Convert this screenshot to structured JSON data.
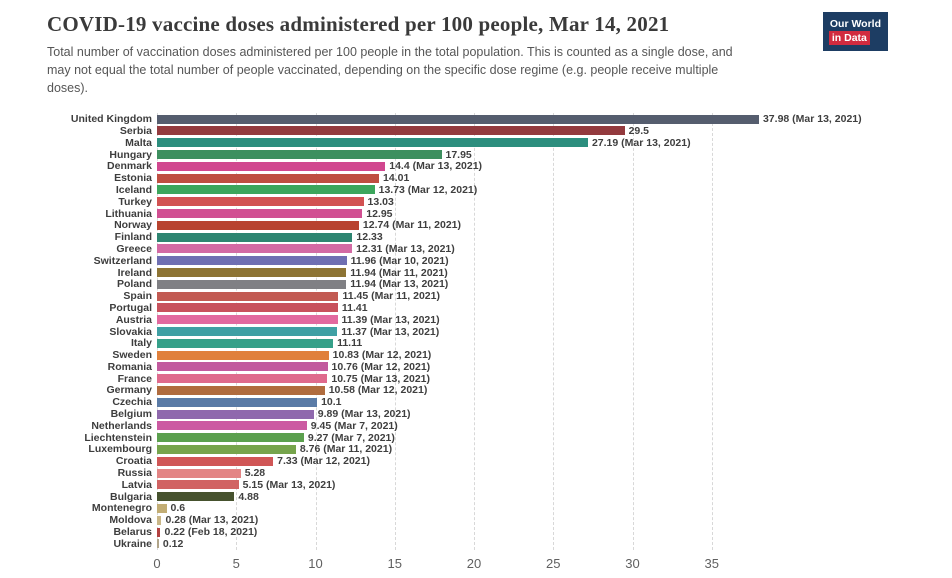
{
  "header": {
    "title": "COVID-19 vaccine doses administered per 100 people, Mar 14, 2021",
    "subtitle": "Total number of vaccination doses administered per 100 people in the total population. This is counted as a single dose, and may not equal the total number of people vaccinated, depending on the specific dose regime (e.g. people receive multiple doses).",
    "logo": {
      "line1": "Our World",
      "line2": "in Data"
    }
  },
  "colors": {
    "background": "#ffffff",
    "logo_bg": "#1d3d63",
    "logo_accent": "#d12b3f",
    "grid": "#d8d8d8",
    "axis_text": "#606060",
    "label_text": "#3d3d3d"
  },
  "chart_data": {
    "type": "bar",
    "orientation": "horizontal",
    "title": "COVID-19 vaccine doses administered per 100 people, Mar 14, 2021",
    "xlabel": "",
    "ylabel": "",
    "xlim": [
      0,
      38
    ],
    "xticks": [
      0,
      5,
      10,
      15,
      20,
      25,
      30,
      35
    ],
    "grid": "vertical-dashed",
    "unit": "doses per 100 people",
    "series": [
      {
        "label": "United Kingdom",
        "value": 37.98,
        "display": "37.98 (Mar 13, 2021)",
        "color": "#555d6e"
      },
      {
        "label": "Serbia",
        "value": 29.5,
        "display": "29.5",
        "color": "#933a3e"
      },
      {
        "label": "Malta",
        "value": 27.19,
        "display": "27.19 (Mar 13, 2021)",
        "color": "#2c8e7e"
      },
      {
        "label": "Hungary",
        "value": 17.95,
        "display": "17.95",
        "color": "#3d8f5f"
      },
      {
        "label": "Denmark",
        "value": 14.4,
        "display": "14.4 (Mar 13, 2021)",
        "color": "#d1478f"
      },
      {
        "label": "Estonia",
        "value": 14.01,
        "display": "14.01",
        "color": "#bf4e41"
      },
      {
        "label": "Iceland",
        "value": 13.73,
        "display": "13.73 (Mar 12, 2021)",
        "color": "#3ca65c"
      },
      {
        "label": "Turkey",
        "value": 13.03,
        "display": "13.03",
        "color": "#d25252"
      },
      {
        "label": "Lithuania",
        "value": 12.95,
        "display": "12.95",
        "color": "#d14f92"
      },
      {
        "label": "Norway",
        "value": 12.74,
        "display": "12.74 (Mar 11, 2021)",
        "color": "#b8432f"
      },
      {
        "label": "Finland",
        "value": 12.33,
        "display": "12.33",
        "color": "#2d8571"
      },
      {
        "label": "Greece",
        "value": 12.31,
        "display": "12.31 (Mar 13, 2021)",
        "color": "#d36aa4"
      },
      {
        "label": "Switzerland",
        "value": 11.96,
        "display": "11.96 (Mar 10, 2021)",
        "color": "#6f6fb2"
      },
      {
        "label": "Ireland",
        "value": 11.94,
        "display": "11.94 (Mar 11, 2021)",
        "color": "#8d7434"
      },
      {
        "label": "Poland",
        "value": 11.94,
        "display": "11.94 (Mar 13, 2021)",
        "color": "#808084"
      },
      {
        "label": "Spain",
        "value": 11.45,
        "display": "11.45 (Mar 11, 2021)",
        "color": "#c25a52"
      },
      {
        "label": "Portugal",
        "value": 11.41,
        "display": "11.41",
        "color": "#c8515c"
      },
      {
        "label": "Austria",
        "value": 11.39,
        "display": "11.39 (Mar 13, 2021)",
        "color": "#e2699f"
      },
      {
        "label": "Slovakia",
        "value": 11.37,
        "display": "11.37 (Mar 13, 2021)",
        "color": "#3fa0a4"
      },
      {
        "label": "Italy",
        "value": 11.11,
        "display": "11.11",
        "color": "#35a089"
      },
      {
        "label": "Sweden",
        "value": 10.83,
        "display": "10.83 (Mar 12, 2021)",
        "color": "#e0803c"
      },
      {
        "label": "Romania",
        "value": 10.76,
        "display": "10.76 (Mar 12, 2021)",
        "color": "#c25a9e"
      },
      {
        "label": "France",
        "value": 10.75,
        "display": "10.75 (Mar 13, 2021)",
        "color": "#df6a8d"
      },
      {
        "label": "Germany",
        "value": 10.58,
        "display": "10.58 (Mar 12, 2021)",
        "color": "#b06c3e"
      },
      {
        "label": "Czechia",
        "value": 10.1,
        "display": "10.1",
        "color": "#5a7ba6"
      },
      {
        "label": "Belgium",
        "value": 9.89,
        "display": "9.89 (Mar 13, 2021)",
        "color": "#8f68ad"
      },
      {
        "label": "Netherlands",
        "value": 9.45,
        "display": "9.45 (Mar 7, 2021)",
        "color": "#cc5aa2"
      },
      {
        "label": "Liechtenstein",
        "value": 9.27,
        "display": "9.27 (Mar 7, 2021)",
        "color": "#5ba04e"
      },
      {
        "label": "Luxembourg",
        "value": 8.76,
        "display": "8.76 (Mar 11, 2021)",
        "color": "#76a44c"
      },
      {
        "label": "Croatia",
        "value": 7.33,
        "display": "7.33 (Mar 12, 2021)",
        "color": "#d05656"
      },
      {
        "label": "Russia",
        "value": 5.28,
        "display": "5.28",
        "color": "#e38585"
      },
      {
        "label": "Latvia",
        "value": 5.15,
        "display": "5.15 (Mar 13, 2021)",
        "color": "#d16363"
      },
      {
        "label": "Bulgaria",
        "value": 4.88,
        "display": "4.88",
        "color": "#46522e"
      },
      {
        "label": "Montenegro",
        "value": 0.6,
        "display": "0.6",
        "color": "#c2ad74"
      },
      {
        "label": "Moldova",
        "value": 0.28,
        "display": "0.28 (Mar 13, 2021)",
        "color": "#c9b687"
      },
      {
        "label": "Belarus",
        "value": 0.22,
        "display": "0.22 (Feb 18, 2021)",
        "color": "#b24040"
      },
      {
        "label": "Ukraine",
        "value": 0.12,
        "display": "0.12",
        "color": "#b0a489"
      }
    ]
  }
}
